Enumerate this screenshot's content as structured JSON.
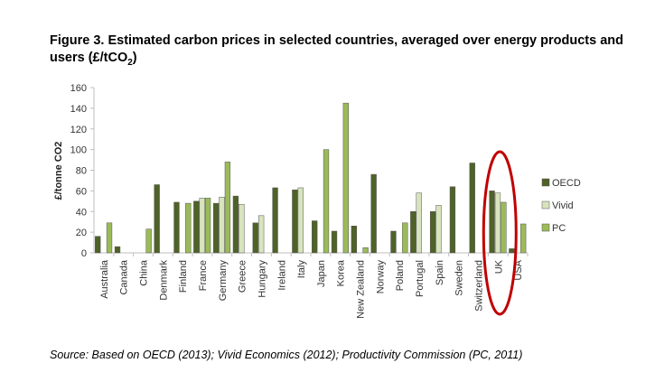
{
  "title_main": "Figure 3. Estimated carbon prices in selected countries, averaged over energy products and users (£/tCO",
  "title_sub": "2",
  "title_end": ")",
  "source": "Source: Based on OECD (2013); Vivid Economics (2012); Productivity Commission (PC, 2011)",
  "colors": {
    "OECD": "#4f6228",
    "Vivid": "#d7e4bd",
    "PC": "#9bbb59",
    "highlight": "#c00000",
    "axis": "#bfbfbf"
  },
  "chart_data": {
    "type": "bar",
    "ylabel": "£/tonne CO2",
    "ylim": [
      0,
      160
    ],
    "yticks": [
      0,
      20,
      40,
      60,
      80,
      100,
      120,
      140,
      160
    ],
    "grid": false,
    "legend_position": "right",
    "highlighted_category": "UK",
    "categories": [
      "Australia",
      "Canada",
      "China",
      "Denmark",
      "Finland",
      "France",
      "Germany",
      "Greece",
      "Hungary",
      "Ireland",
      "Italy",
      "Japan",
      "Korea",
      "New Zealand",
      "Norway",
      "Poland",
      "Portugal",
      "Spain",
      "Sweden",
      "Switzerland",
      "UK",
      "USA"
    ],
    "series": [
      {
        "name": "OECD",
        "values": [
          16,
          6,
          null,
          66,
          49,
          50,
          48,
          55,
          29,
          63,
          61,
          31,
          21,
          26,
          76,
          21,
          40,
          40,
          64,
          87,
          60,
          4
        ]
      },
      {
        "name": "Vivid",
        "values": [
          null,
          null,
          null,
          null,
          null,
          53,
          54,
          47,
          36,
          null,
          63,
          null,
          null,
          null,
          null,
          null,
          58,
          46,
          null,
          null,
          58,
          null
        ]
      },
      {
        "name": "PC",
        "values": [
          29,
          null,
          23,
          null,
          48,
          53,
          88,
          null,
          null,
          null,
          null,
          100,
          145,
          5,
          null,
          29,
          null,
          null,
          null,
          null,
          49,
          28
        ]
      }
    ]
  }
}
